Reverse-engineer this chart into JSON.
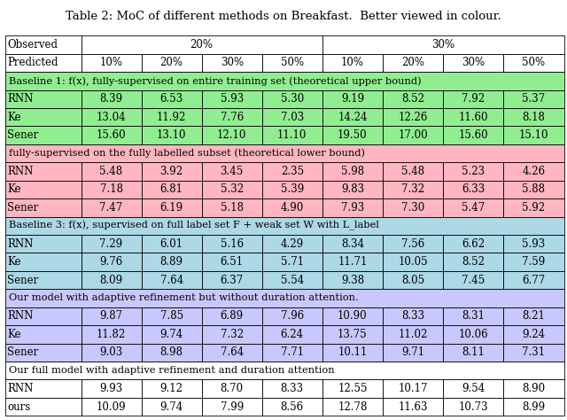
{
  "title": "Table 2: MoC of different methods on Breakfast.  Better viewed in colour.",
  "col_headers_row1": [
    "Observed",
    "20%",
    "30%"
  ],
  "col_headers_row2": [
    "Predicted",
    "10%",
    "20%",
    "30%",
    "50%",
    "10%",
    "20%",
    "30%",
    "50%"
  ],
  "sections": [
    {
      "header": "Baseline 1: f(x), fully-supervised on entire training set (theoretical upper bound)",
      "header_color": "#90EE90",
      "data_color": "#90EE90",
      "rows": [
        [
          "RNN",
          "8.39",
          "6.53",
          "5.93",
          "5.30",
          "9.19",
          "8.52",
          "7.92",
          "5.37"
        ],
        [
          "Ke",
          "13.04",
          "11.92",
          "7.76",
          "7.03",
          "14.24",
          "12.26",
          "11.60",
          "8.18"
        ],
        [
          "Sener",
          "15.60",
          "13.10",
          "12.10",
          "11.10",
          "19.50",
          "17.00",
          "15.60",
          "15.10"
        ]
      ]
    },
    {
      "header": "fully-supervised on the fully labelled subset (theoretical lower bound)",
      "header_color": "#FFB6C1",
      "data_color": "#FFB6C1",
      "rows": [
        [
          "RNN",
          "5.48",
          "3.92",
          "3.45",
          "2.35",
          "5.98",
          "5.48",
          "5.23",
          "4.26"
        ],
        [
          "Ke",
          "7.18",
          "6.81",
          "5.32",
          "5.39",
          "9.83",
          "7.32",
          "6.33",
          "5.88"
        ],
        [
          "Sener",
          "7.47",
          "6.19",
          "5.18",
          "4.90",
          "7.93",
          "7.30",
          "5.47",
          "5.92"
        ]
      ]
    },
    {
      "header": "Baseline 3: f(x), supervised on full label set F + weak set W with L_label",
      "header_color": "#ADD8E6",
      "data_color": "#ADD8E6",
      "rows": [
        [
          "RNN",
          "7.29",
          "6.01",
          "5.16",
          "4.29",
          "8.34",
          "7.56",
          "6.62",
          "5.93"
        ],
        [
          "Ke",
          "9.76",
          "8.89",
          "6.51",
          "5.71",
          "11.71",
          "10.05",
          "8.52",
          "7.59"
        ],
        [
          "Sener",
          "8.09",
          "7.64",
          "6.37",
          "5.54",
          "9.38",
          "8.05",
          "7.45",
          "6.77"
        ]
      ]
    },
    {
      "header": "Our model with adaptive refinement but without duration attention.",
      "header_color": "#C8C8FF",
      "data_color": "#C8C8FF",
      "rows": [
        [
          "RNN",
          "9.87",
          "7.85",
          "6.89",
          "7.96",
          "10.90",
          "8.33",
          "8.31",
          "8.21"
        ],
        [
          "Ke",
          "11.82",
          "9.74",
          "7.32",
          "6.24",
          "13.75",
          "11.02",
          "10.06",
          "9.24"
        ],
        [
          "Sener",
          "9.03",
          "8.98",
          "7.64",
          "7.71",
          "10.11",
          "9.71",
          "8.11",
          "7.31"
        ]
      ]
    },
    {
      "header": "Our full model with adaptive refinement and duration attention",
      "header_color": "#FFFFFF",
      "data_color": "#FFFFFF",
      "rows": [
        [
          "RNN",
          "9.93",
          "9.12",
          "8.70",
          "8.33",
          "12.55",
          "10.17",
          "9.54",
          "8.90"
        ],
        [
          "ours",
          "10.09",
          "9.74",
          "7.99",
          "8.56",
          "12.78",
          "11.63",
          "10.73",
          "8.99"
        ]
      ]
    }
  ],
  "figsize": [
    6.4,
    4.74
  ],
  "dpi": 100
}
